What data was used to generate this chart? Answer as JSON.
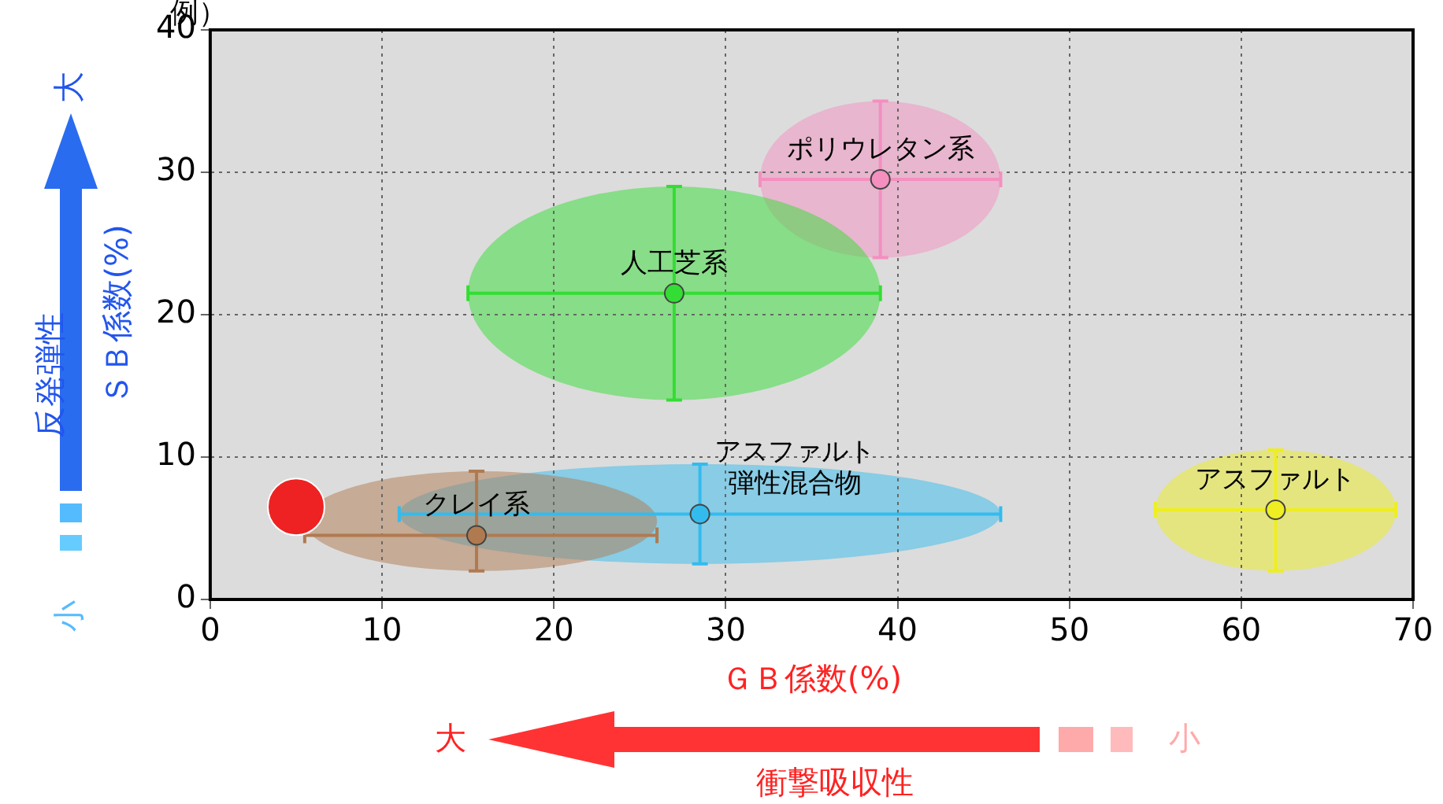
{
  "chart_data": {
    "type": "scatter",
    "xlabel": "ＧＢ係数(%)",
    "ylabel": "ＳＢ係数(%)",
    "annotations": [
      "例）",
      "反発弾性",
      "大",
      "小",
      "大",
      "衝撃吸収性",
      "小"
    ],
    "xlim": [
      0,
      70
    ],
    "ylim": [
      0,
      40
    ],
    "xticks": [
      0,
      10,
      20,
      30,
      40,
      50,
      60,
      70
    ],
    "yticks": [
      0,
      10,
      20,
      30,
      40
    ],
    "grid": true,
    "legend": false,
    "marker": "circle",
    "series": [
      {
        "name": "ポリウレタン系",
        "color": "#f48fc0",
        "x": [
          39
        ],
        "values": [
          29.5
        ],
        "xerrors": [
          [
            32,
            46
          ]
        ],
        "errors": [
          [
            24,
            35
          ]
        ]
      },
      {
        "name": "人工芝系",
        "color": "#33dd33",
        "x": [
          27
        ],
        "values": [
          21.5
        ],
        "xerrors": [
          [
            15,
            39
          ]
        ],
        "errors": [
          [
            14,
            29
          ]
        ]
      },
      {
        "name": "アスファルト弾性混合物",
        "color": "#33bbee",
        "x": [
          28.5
        ],
        "values": [
          6
        ],
        "xerrors": [
          [
            11,
            46
          ]
        ],
        "errors": [
          [
            2.5,
            9.5
          ]
        ]
      },
      {
        "name": "クレイ系",
        "color": "#b07a50",
        "x": [
          15.5
        ],
        "values": [
          4.5
        ],
        "xerrors": [
          [
            5.5,
            26
          ]
        ],
        "errors": [
          [
            2,
            9
          ]
        ]
      },
      {
        "name": "アスファルト",
        "color": "#eeee22",
        "x": [
          62
        ],
        "values": [
          6.3
        ],
        "xerrors": [
          [
            55,
            69
          ]
        ],
        "errors": [
          [
            2,
            10.5
          ]
        ]
      },
      {
        "color": "#ee2222",
        "x": [
          5
        ],
        "values": [
          6.5
        ]
      }
    ]
  }
}
